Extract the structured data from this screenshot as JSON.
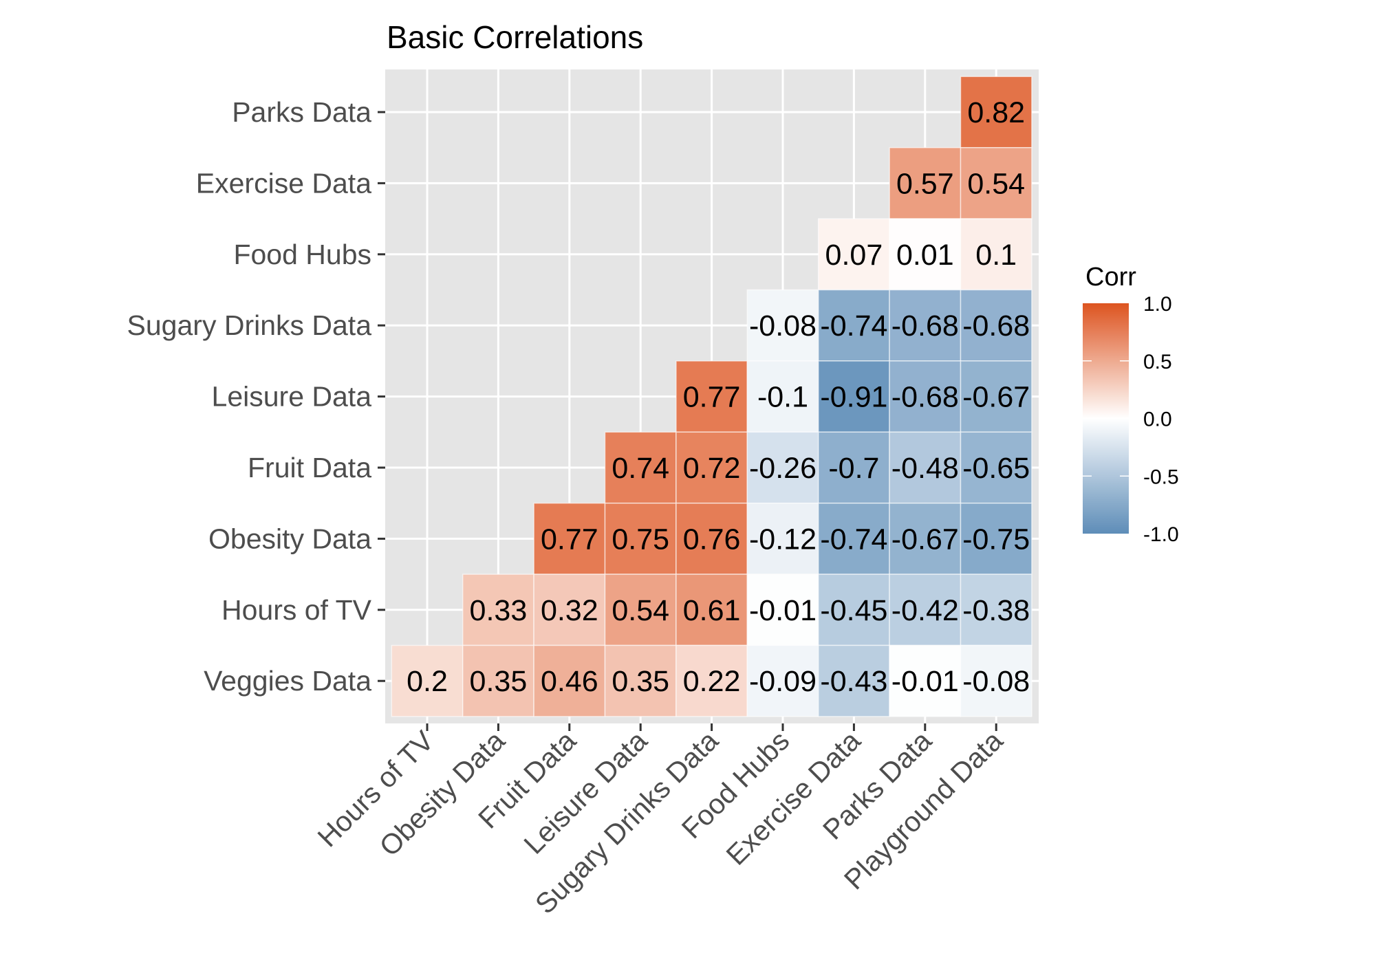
{
  "chart_data": {
    "type": "heatmap",
    "title": "Basic Correlations",
    "xlabel": "",
    "ylabel": "",
    "x_categories": [
      "Hours of TV",
      "Obesity Data",
      "Fruit Data",
      "Leisure Data",
      "Sugary Drinks Data",
      "Food Hubs",
      "Exercise Data",
      "Parks Data",
      "Playground Data"
    ],
    "y_categories_top_to_bottom": [
      "Parks Data",
      "Exercise Data",
      "Food Hubs",
      "Sugary Drinks Data",
      "Leisure Data",
      "Fruit Data",
      "Obesity Data",
      "Hours of TV",
      "Veggies Data"
    ],
    "cells": [
      {
        "row": "Parks Data",
        "col": "Playground Data",
        "value": 0.82,
        "label": "0.82"
      },
      {
        "row": "Exercise Data",
        "col": "Parks Data",
        "value": 0.57,
        "label": "0.57"
      },
      {
        "row": "Exercise Data",
        "col": "Playground Data",
        "value": 0.54,
        "label": "0.54"
      },
      {
        "row": "Food Hubs",
        "col": "Exercise Data",
        "value": 0.07,
        "label": "0.07"
      },
      {
        "row": "Food Hubs",
        "col": "Parks Data",
        "value": 0.01,
        "label": "0.01"
      },
      {
        "row": "Food Hubs",
        "col": "Playground Data",
        "value": 0.1,
        "label": "0.1"
      },
      {
        "row": "Sugary Drinks Data",
        "col": "Food Hubs",
        "value": -0.08,
        "label": "-0.08"
      },
      {
        "row": "Sugary Drinks Data",
        "col": "Exercise Data",
        "value": -0.74,
        "label": "-0.74"
      },
      {
        "row": "Sugary Drinks Data",
        "col": "Parks Data",
        "value": -0.68,
        "label": "-0.68"
      },
      {
        "row": "Sugary Drinks Data",
        "col": "Playground Data",
        "value": -0.68,
        "label": "-0.68"
      },
      {
        "row": "Leisure Data",
        "col": "Sugary Drinks Data",
        "value": 0.77,
        "label": "0.77"
      },
      {
        "row": "Leisure Data",
        "col": "Food Hubs",
        "value": -0.1,
        "label": "-0.1"
      },
      {
        "row": "Leisure Data",
        "col": "Exercise Data",
        "value": -0.91,
        "label": "-0.91"
      },
      {
        "row": "Leisure Data",
        "col": "Parks Data",
        "value": -0.68,
        "label": "-0.68"
      },
      {
        "row": "Leisure Data",
        "col": "Playground Data",
        "value": -0.67,
        "label": "-0.67"
      },
      {
        "row": "Fruit Data",
        "col": "Leisure Data",
        "value": 0.74,
        "label": "0.74"
      },
      {
        "row": "Fruit Data",
        "col": "Sugary Drinks Data",
        "value": 0.72,
        "label": "0.72"
      },
      {
        "row": "Fruit Data",
        "col": "Food Hubs",
        "value": -0.26,
        "label": "-0.26"
      },
      {
        "row": "Fruit Data",
        "col": "Exercise Data",
        "value": -0.7,
        "label": "-0.7"
      },
      {
        "row": "Fruit Data",
        "col": "Parks Data",
        "value": -0.48,
        "label": "-0.48"
      },
      {
        "row": "Fruit Data",
        "col": "Playground Data",
        "value": -0.65,
        "label": "-0.65"
      },
      {
        "row": "Obesity Data",
        "col": "Fruit Data",
        "value": 0.77,
        "label": "0.77"
      },
      {
        "row": "Obesity Data",
        "col": "Leisure Data",
        "value": 0.75,
        "label": "0.75"
      },
      {
        "row": "Obesity Data",
        "col": "Sugary Drinks Data",
        "value": 0.76,
        "label": "0.76"
      },
      {
        "row": "Obesity Data",
        "col": "Food Hubs",
        "value": -0.12,
        "label": "-0.12"
      },
      {
        "row": "Obesity Data",
        "col": "Exercise Data",
        "value": -0.74,
        "label": "-0.74"
      },
      {
        "row": "Obesity Data",
        "col": "Parks Data",
        "value": -0.67,
        "label": "-0.67"
      },
      {
        "row": "Obesity Data",
        "col": "Playground Data",
        "value": -0.75,
        "label": "-0.75"
      },
      {
        "row": "Hours of TV",
        "col": "Obesity Data",
        "value": 0.33,
        "label": "0.33"
      },
      {
        "row": "Hours of TV",
        "col": "Fruit Data",
        "value": 0.32,
        "label": "0.32"
      },
      {
        "row": "Hours of TV",
        "col": "Leisure Data",
        "value": 0.54,
        "label": "0.54"
      },
      {
        "row": "Hours of TV",
        "col": "Sugary Drinks Data",
        "value": 0.61,
        "label": "0.61"
      },
      {
        "row": "Hours of TV",
        "col": "Food Hubs",
        "value": -0.01,
        "label": "-0.01"
      },
      {
        "row": "Hours of TV",
        "col": "Exercise Data",
        "value": -0.45,
        "label": "-0.45"
      },
      {
        "row": "Hours of TV",
        "col": "Parks Data",
        "value": -0.42,
        "label": "-0.42"
      },
      {
        "row": "Hours of TV",
        "col": "Playground Data",
        "value": -0.38,
        "label": "-0.38"
      },
      {
        "row": "Veggies Data",
        "col": "Hours of TV",
        "value": 0.2,
        "label": "0.2"
      },
      {
        "row": "Veggies Data",
        "col": "Obesity Data",
        "value": 0.35,
        "label": "0.35"
      },
      {
        "row": "Veggies Data",
        "col": "Fruit Data",
        "value": 0.46,
        "label": "0.46"
      },
      {
        "row": "Veggies Data",
        "col": "Leisure Data",
        "value": 0.35,
        "label": "0.35"
      },
      {
        "row": "Veggies Data",
        "col": "Sugary Drinks Data",
        "value": 0.22,
        "label": "0.22"
      },
      {
        "row": "Veggies Data",
        "col": "Food Hubs",
        "value": -0.09,
        "label": "-0.09"
      },
      {
        "row": "Veggies Data",
        "col": "Exercise Data",
        "value": -0.43,
        "label": "-0.43"
      },
      {
        "row": "Veggies Data",
        "col": "Parks Data",
        "value": -0.01,
        "label": "-0.01"
      },
      {
        "row": "Veggies Data",
        "col": "Playground Data",
        "value": -0.08,
        "label": "-0.08"
      }
    ],
    "legend": {
      "title": "Corr",
      "position": "right",
      "range": [
        -1.0,
        1.0
      ],
      "ticks": [
        1.0,
        0.5,
        0.0,
        -0.5,
        -1.0
      ],
      "tick_labels": [
        "1.0",
        "0.5",
        "0.0",
        "-0.5",
        "-1.0"
      ]
    },
    "color_scale": {
      "low": "#5E8DB8",
      "mid": "#FFFFFF",
      "high": "#DD5420"
    },
    "panel_background": "#E5E5E5",
    "grid": true
  }
}
